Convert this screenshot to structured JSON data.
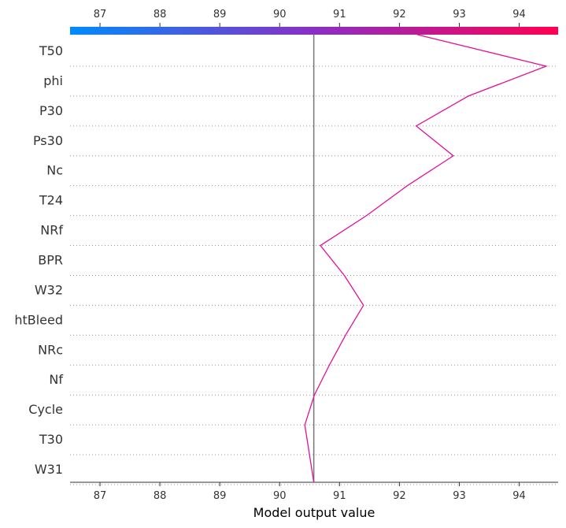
{
  "chart_data": {
    "type": "line",
    "subtype": "shap-decision-plot",
    "xlabel": "Model output value",
    "xlim": [
      86.5,
      94.65
    ],
    "x_ticks": [
      "87",
      "88",
      "89",
      "90",
      "91",
      "92",
      "93",
      "94"
    ],
    "x_tick_values": [
      87,
      88,
      89,
      90,
      91,
      92,
      93,
      94
    ],
    "base_value": 90.57,
    "features": [
      "T50",
      "phi",
      "P30",
      "Ps30",
      "Nc",
      "T24",
      "NRf",
      "BPR",
      "W32",
      "htBleed",
      "NRc",
      "Nf",
      "Cycle",
      "T30",
      "W31"
    ],
    "path": {
      "points": [
        92.3,
        94.45,
        93.15,
        92.28,
        92.9,
        92.13,
        91.45,
        90.68,
        91.08,
        91.4,
        91.1,
        90.83,
        90.58,
        90.42,
        90.57
      ],
      "point_features": [
        "T50",
        "phi",
        "P30",
        "Ps30",
        "Nc",
        "T24",
        "NRf",
        "BPR",
        "W32",
        "htBleed",
        "NRc",
        "Nf",
        "Cycle",
        "T30",
        "W31"
      ],
      "color": "#e0119a"
    },
    "colorbar": {
      "from": "#008bfb",
      "mid": "#8a2fc4",
      "to": "#ff0052"
    },
    "grid": "dotted horizontal"
  }
}
